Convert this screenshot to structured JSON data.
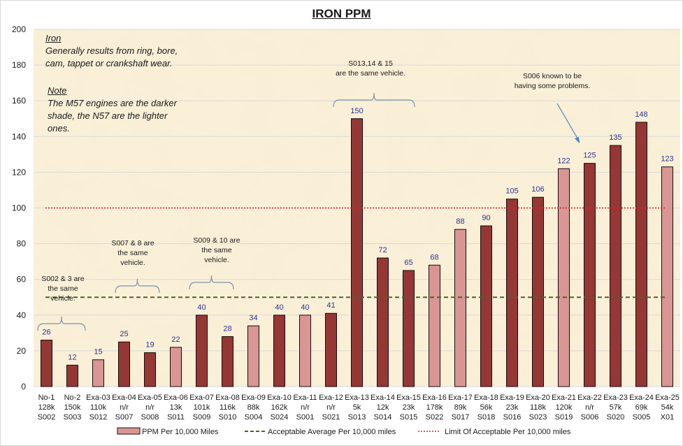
{
  "chart_data": {
    "type": "bar",
    "title": "IRON PPM",
    "xlabel": "",
    "ylabel": "",
    "ylim": [
      0,
      200
    ],
    "yticks": [
      0,
      20,
      40,
      60,
      80,
      100,
      120,
      140,
      160,
      180,
      200
    ],
    "grid": true,
    "legend_position": "bottom",
    "categories": [
      {
        "name": "No-1",
        "miles": "128k",
        "sample": "S002"
      },
      {
        "name": "No-2",
        "miles": "150k",
        "sample": "S003"
      },
      {
        "name": "Exa-03",
        "miles": "110k",
        "sample": "S012"
      },
      {
        "name": "Exa-04",
        "miles": "n/r",
        "sample": "S007"
      },
      {
        "name": "Exa-05",
        "miles": "n/r",
        "sample": "S008"
      },
      {
        "name": "Exa-06",
        "miles": "13k",
        "sample": "S011"
      },
      {
        "name": "Exa-07",
        "miles": "101k",
        "sample": "S009"
      },
      {
        "name": "Exa-08",
        "miles": "116k",
        "sample": "S010"
      },
      {
        "name": "Exa-09",
        "miles": "88k",
        "sample": "S004"
      },
      {
        "name": "Exa-10",
        "miles": "162k",
        "sample": "S024"
      },
      {
        "name": "Exa-11",
        "miles": "n/r",
        "sample": "S001"
      },
      {
        "name": "Exa-12",
        "miles": "n/r",
        "sample": "S021"
      },
      {
        "name": "Exa-13",
        "miles": "5k",
        "sample": "S013"
      },
      {
        "name": "Exa-14",
        "miles": "12k",
        "sample": "S014"
      },
      {
        "name": "Exa-15",
        "miles": "23k",
        "sample": "S015"
      },
      {
        "name": "Exa-16",
        "miles": "178k",
        "sample": "S022"
      },
      {
        "name": "Exa-17",
        "miles": "89k",
        "sample": "S017"
      },
      {
        "name": "Exa-18",
        "miles": "56k",
        "sample": "S018"
      },
      {
        "name": "Exa-19",
        "miles": "23k",
        "sample": "S016"
      },
      {
        "name": "Exa-20",
        "miles": "118k",
        "sample": "S023"
      },
      {
        "name": "Exa-21",
        "miles": "120k",
        "sample": "S019"
      },
      {
        "name": "Exa-22",
        "miles": "n/r",
        "sample": "S006"
      },
      {
        "name": "Exa-23",
        "miles": "57k",
        "sample": "S020"
      },
      {
        "name": "Exa-24",
        "miles": "69k",
        "sample": "S005"
      },
      {
        "name": "Exa-25",
        "miles": "54k",
        "sample": "X01"
      }
    ],
    "series": [
      {
        "name": "PPM Per 10,000 Miles",
        "type": "bar",
        "values": [
          26,
          12,
          15,
          25,
          19,
          22,
          40,
          28,
          34,
          40,
          40,
          41,
          150,
          72,
          65,
          68,
          88,
          90,
          105,
          106,
          122,
          125,
          135,
          148,
          123
        ],
        "engine": [
          "M57",
          "M57",
          "N57",
          "M57",
          "M57",
          "N57",
          "M57",
          "M57",
          "N57",
          "M57",
          "N57",
          "M57",
          "M57",
          "M57",
          "M57",
          "N57",
          "N57",
          "M57",
          "M57",
          "M57",
          "N57",
          "M57",
          "M57",
          "M57",
          "N57"
        ]
      },
      {
        "name": "Acceptable Average Per 10,000 miles",
        "type": "hline",
        "value": 50,
        "style": "dashed"
      },
      {
        "name": "Limit Of Acceptable Per 10,000 miles",
        "type": "hline",
        "value": 100,
        "style": "dotted"
      }
    ],
    "colors": {
      "M57": "#953735",
      "N57": "#d99694",
      "avg_line": "#4f6228",
      "limit_line": "#e02020",
      "data_label": "#2e3192",
      "plot_bg": "#faf0d8",
      "grid": "#d9d9d9",
      "bracket": "#7f92a8"
    },
    "annotations": {
      "iron_heading": "Iron",
      "iron_text": [
        "Generally results from ring, bore,",
        "cam, tappet or crankshaft wear."
      ],
      "note_heading": "Note",
      "note_text": [
        "The M57 engines are the darker",
        "shade, the N57 are the lighter",
        "ones."
      ],
      "s002": [
        "S002 & 3  are",
        "the same",
        "vehicle."
      ],
      "s007": [
        "S007 & 8 are",
        "the same",
        "vehicle."
      ],
      "s009": [
        "S009 & 10 are",
        "the same",
        "vehicle."
      ],
      "s013": [
        "S013,14 & 15",
        "are the same vehicle."
      ],
      "s006": [
        "S006 known to be",
        "having some problems."
      ]
    }
  }
}
